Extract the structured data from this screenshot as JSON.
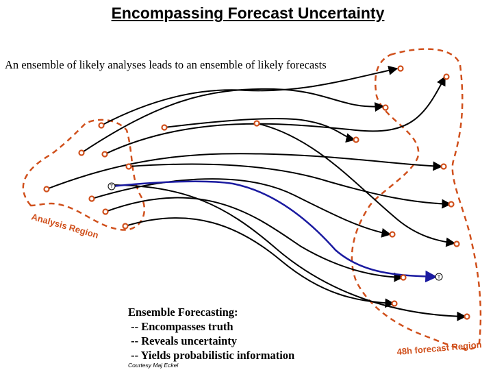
{
  "title": "Encompassing Forecast Uncertainty",
  "subtitle": "An ensemble of likely analyses leads to an ensemble of likely forecasts",
  "analysis_region_label": "Analysis Region",
  "forecast_region_label": "48h forecast Region",
  "truth_marker_label": "T",
  "info_box": {
    "heading": "Ensemble Forecasting:",
    "bullets": [
      " -- Encompasses truth",
      " -- Reveals uncertainty",
      " -- Yields probabilistic information"
    ]
  },
  "courtesy": "Courtesy Maj Eckel",
  "colors": {
    "region": "#d0501c",
    "truth": "#1a1aa0",
    "trajectories": "#000000"
  }
}
